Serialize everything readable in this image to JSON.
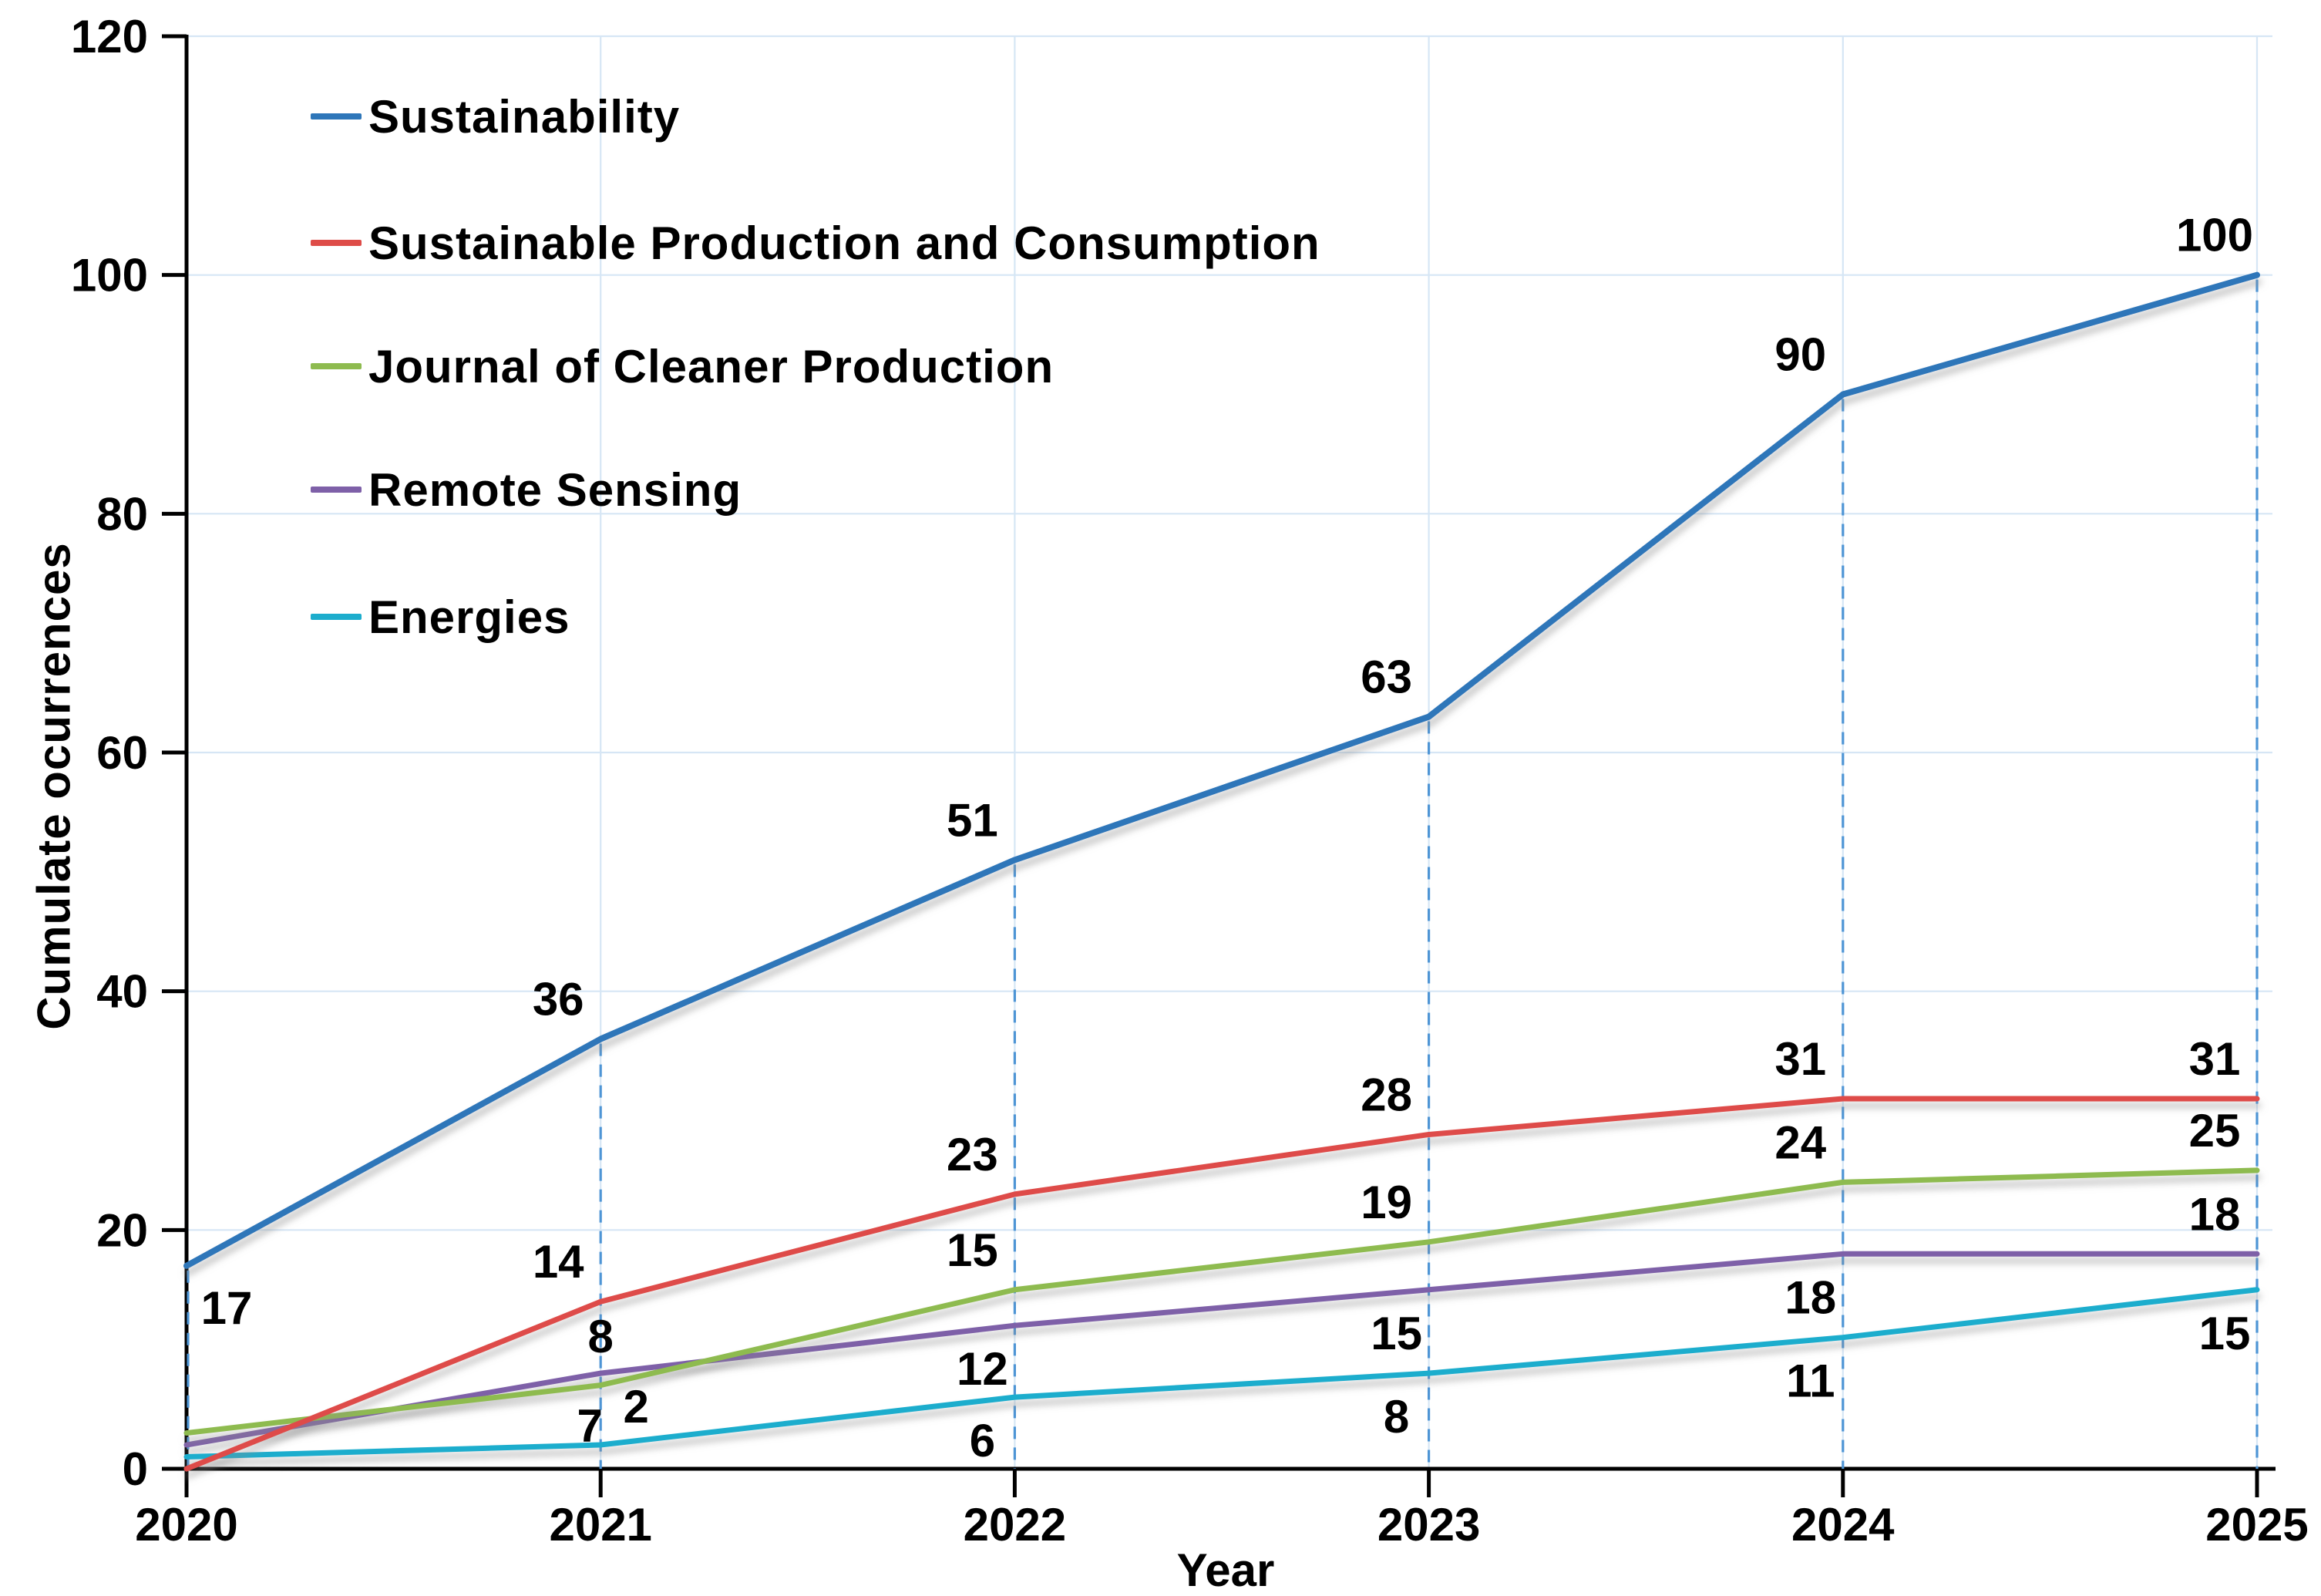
{
  "figure": {
    "background": "#ffffff"
  },
  "chart_data": {
    "type": "line",
    "title": "",
    "xlabel": "Year",
    "ylabel": "Cumulate ocurrences",
    "x": [
      2020,
      2021,
      2022,
      2023,
      2024,
      2025
    ],
    "ylim": [
      0,
      120
    ],
    "yticks": [
      0,
      20,
      40,
      60,
      80,
      100,
      120
    ],
    "legend_position": "inside-top-left",
    "grid": {
      "horizontal": true,
      "vertical": true
    },
    "colors": {
      "gridline": "#D6E6F5",
      "guide_dashed": "#4E95D5",
      "axis": "#000000",
      "label_text": "#000000"
    },
    "guides": {
      "dashed_vertical_at_each_x": true,
      "from_series": "Sustainability"
    },
    "series": [
      {
        "name": "Sustainability",
        "color": "#2E76B9",
        "values": [
          17,
          36,
          51,
          63,
          90,
          100
        ],
        "point_labels": [
          "17",
          "36",
          "51",
          "63",
          "90",
          "100"
        ],
        "label_placements": [
          "below-right",
          "above-left",
          "above-left",
          "above-left",
          "above-left",
          "above-left"
        ]
      },
      {
        "name": "Sustainable Production and Consumption",
        "color": "#DE4C48",
        "values": [
          0,
          14,
          23,
          28,
          31,
          31
        ],
        "point_labels": [
          "",
          "14",
          "23",
          "28",
          "31",
          "31"
        ],
        "label_placements": [
          "none",
          "above-left",
          "above-left",
          "above-left",
          "above-left",
          "above-left"
        ]
      },
      {
        "name": "Journal of Cleaner Production",
        "color": "#8EBB4F",
        "values": [
          3,
          7,
          15,
          19,
          24,
          25
        ],
        "point_labels": [
          "",
          "7",
          "15",
          "19",
          "24",
          "25"
        ],
        "label_placements": [
          "none",
          "below",
          "above-left",
          "above-left",
          "above-left",
          "above-left"
        ]
      },
      {
        "name": "Remote Sensing",
        "color": "#7E60A8",
        "values": [
          2,
          8,
          12,
          15,
          18,
          18
        ],
        "point_labels": [
          "",
          "8",
          "12",
          "15",
          "18",
          "18"
        ],
        "label_placements": [
          "none",
          "above",
          "below-left",
          "below-left",
          "below-left",
          "above-left"
        ]
      },
      {
        "name": "Energies",
        "color": "#1CADCD",
        "values": [
          1,
          2,
          6,
          8,
          11,
          15
        ],
        "point_labels": [
          "",
          "2",
          "6",
          "8",
          "11",
          "15"
        ],
        "label_placements": [
          "none",
          "above-right",
          "below-left",
          "below-left",
          "below-left",
          "below-left"
        ]
      }
    ]
  }
}
